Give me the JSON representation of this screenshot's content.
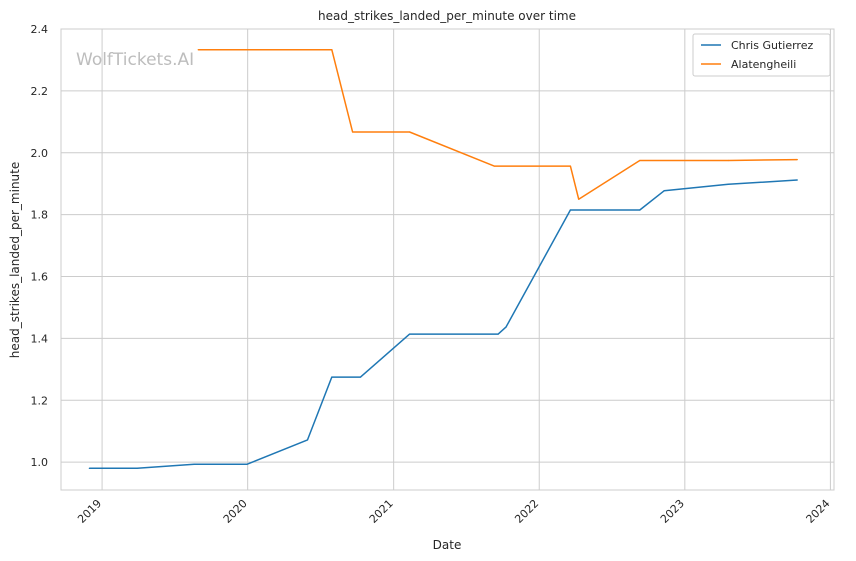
{
  "chart_data": {
    "type": "line",
    "title": "head_strikes_landed_per_minute over time",
    "xlabel": "Date",
    "ylabel": "head_strikes_landed_per_minute",
    "watermark": "WolfTickets.AI",
    "x_type": "date",
    "xlim": [
      "2018-09-20",
      "2024-01-10"
    ],
    "ylim": [
      0.91,
      2.4
    ],
    "x_ticks": [
      {
        "date": "2019-01-01",
        "label": "2019"
      },
      {
        "date": "2020-01-01",
        "label": "2020"
      },
      {
        "date": "2021-01-01",
        "label": "2021"
      },
      {
        "date": "2022-01-01",
        "label": "2022"
      },
      {
        "date": "2023-01-01",
        "label": "2023"
      },
      {
        "date": "2024-01-01",
        "label": "2024"
      }
    ],
    "y_ticks": [
      1.0,
      1.2,
      1.4,
      1.6,
      1.8,
      2.0,
      2.2,
      2.4
    ],
    "y_tick_labels": [
      "1.0",
      "1.2",
      "1.4",
      "1.6",
      "1.8",
      "2.0",
      "2.2",
      "2.4"
    ],
    "grid": true,
    "legend_position": "top-right",
    "series": [
      {
        "name": "Chris Gutierrez",
        "color": "#1f77b4",
        "points": [
          {
            "x": "2018-11-30",
            "y": 0.98
          },
          {
            "x": "2019-03-30",
            "y": 0.98
          },
          {
            "x": "2019-08-20",
            "y": 0.993
          },
          {
            "x": "2019-12-30",
            "y": 0.993
          },
          {
            "x": "2020-05-30",
            "y": 1.072
          },
          {
            "x": "2020-07-30",
            "y": 1.275
          },
          {
            "x": "2020-10-10",
            "y": 1.275
          },
          {
            "x": "2021-02-10",
            "y": 1.414
          },
          {
            "x": "2021-09-20",
            "y": 1.414
          },
          {
            "x": "2021-10-10",
            "y": 1.437
          },
          {
            "x": "2022-03-20",
            "y": 1.815
          },
          {
            "x": "2022-09-10",
            "y": 1.815
          },
          {
            "x": "2022-11-10",
            "y": 1.877
          },
          {
            "x": "2023-04-20",
            "y": 1.898
          },
          {
            "x": "2023-10-10",
            "y": 1.912
          }
        ]
      },
      {
        "name": "Alatengheili",
        "color": "#ff7f0e",
        "points": [
          {
            "x": "2019-08-30",
            "y": 2.333
          },
          {
            "x": "2020-07-30",
            "y": 2.333
          },
          {
            "x": "2020-09-20",
            "y": 2.067
          },
          {
            "x": "2021-02-10",
            "y": 2.067
          },
          {
            "x": "2021-09-10",
            "y": 1.957
          },
          {
            "x": "2022-03-20",
            "y": 1.957
          },
          {
            "x": "2022-04-10",
            "y": 1.85
          },
          {
            "x": "2022-09-10",
            "y": 1.975
          },
          {
            "x": "2023-04-20",
            "y": 1.975
          },
          {
            "x": "2023-10-10",
            "y": 1.978
          }
        ]
      }
    ]
  }
}
